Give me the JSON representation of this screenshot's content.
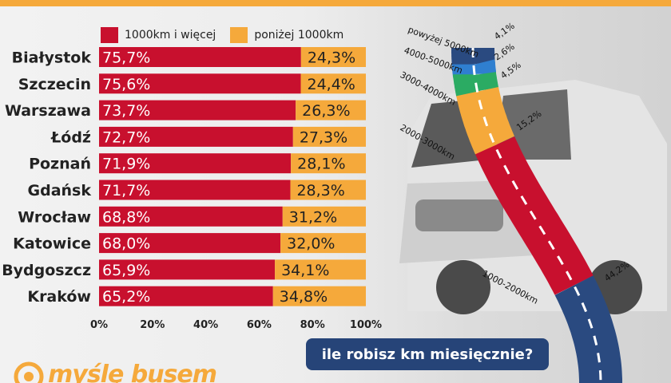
{
  "colors": {
    "primary": "#c8102e",
    "secondary": "#f5a93b",
    "navy": "#2a4a80",
    "blue": "#2f7fd0",
    "green": "#2bab63",
    "tick_text": "#222222",
    "question_bg": "#264478",
    "logo": "#f5a93b"
  },
  "legend": {
    "primary_label": "1000km i więcej",
    "secondary_label": "poniżej 1000km"
  },
  "question_label": "ile robisz km miesięcznie?",
  "logo_text": "myślę busem",
  "chart_data": [
    {
      "type": "bar",
      "orientation": "horizontal",
      "stacked": true,
      "categories": [
        "Białystok",
        "Szczecin",
        "Warszawa",
        "Łódź",
        "Poznań",
        "Gdańsk",
        "Wrocław",
        "Katowice",
        "Bydgoszcz",
        "Kraków"
      ],
      "series": [
        {
          "name": "1000km i więcej",
          "values": [
            75.7,
            75.6,
            73.7,
            72.7,
            71.9,
            71.7,
            68.8,
            68.0,
            65.9,
            65.2
          ]
        },
        {
          "name": "poniżej 1000km",
          "values": [
            24.3,
            24.4,
            26.3,
            27.3,
            28.1,
            28.3,
            31.2,
            32.0,
            34.1,
            34.8
          ]
        }
      ],
      "data_labels": {
        "primary": [
          "75,7%",
          "75,6%",
          "73,7%",
          "72,7%",
          "71,9%",
          "71,7%",
          "68,8%",
          "68,0%",
          "65,9%",
          "65,2%"
        ],
        "secondary": [
          "24,3%",
          "24,4%",
          "26,3%",
          "27,3%",
          "28,1%",
          "28,3%",
          "31,2%",
          "32,0%",
          "34,1%",
          "34,8%"
        ]
      },
      "x_ticks": [
        "0%",
        "20%",
        "40%",
        "60%",
        "80%",
        "100%"
      ],
      "xlim": [
        0,
        100
      ],
      "legend": "top"
    },
    {
      "type": "stacked-segment",
      "categories": [
        "powyżej 5000km",
        "4000-5000km",
        "3000-4000km",
        "2000-3000km",
        "1000-2000km"
      ],
      "values": [
        4.1,
        2.6,
        4.5,
        15.2,
        44.2
      ],
      "data_labels": [
        "4,1%",
        "2,6%",
        "4,5%",
        "15,2%",
        "44,2%"
      ]
    }
  ]
}
